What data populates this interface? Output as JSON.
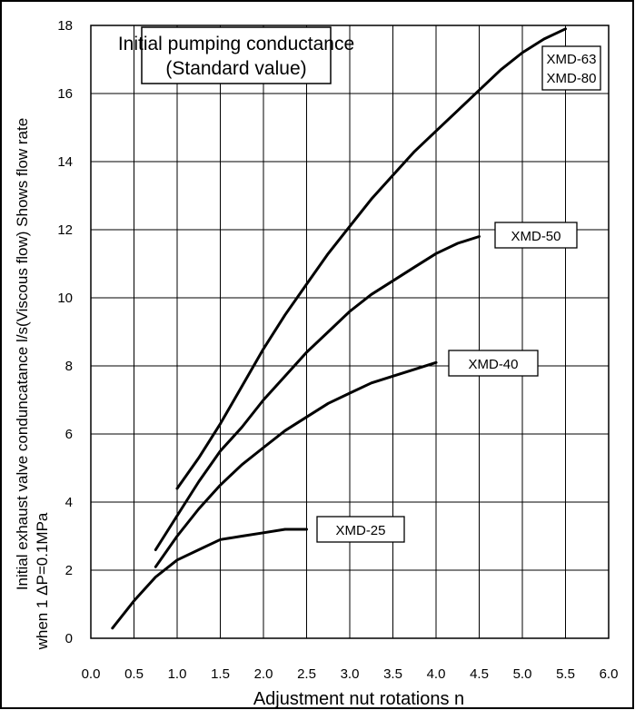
{
  "chart_data": {
    "type": "line",
    "title": "Initial pumping conductance",
    "subtitle": "(Standard value)",
    "xlabel": "Adjustment nut rotations n",
    "ylabel_lines": [
      "Initial  exhaust  valve    conduncatance  l/s(Viscous  flow)  Shows  flow  rate",
      "when 1  ΔP=0.1MPa"
    ],
    "xlim": [
      0.0,
      6.0
    ],
    "ylim": [
      0,
      18
    ],
    "x_ticks": [
      {
        "value": 0.0,
        "label": "0.0"
      },
      {
        "value": 0.5,
        "label": "0.5"
      },
      {
        "value": 1.0,
        "label": "1.0"
      },
      {
        "value": 1.5,
        "label": "1.5"
      },
      {
        "value": 2.0,
        "label": "2.0"
      },
      {
        "value": 2.5,
        "label": "2.5"
      },
      {
        "value": 3.0,
        "label": "3.0"
      },
      {
        "value": 3.5,
        "label": "3.5"
      },
      {
        "value": 4.0,
        "label": "4.0"
      },
      {
        "value": 4.5,
        "label": "4.5"
      },
      {
        "value": 5.0,
        "label": "5.0"
      },
      {
        "value": 5.5,
        "label": "5.5"
      },
      {
        "value": 6.0,
        "label": "6.0"
      }
    ],
    "y_ticks": [
      {
        "value": 0,
        "label": "0"
      },
      {
        "value": 2,
        "label": "2"
      },
      {
        "value": 4,
        "label": "4"
      },
      {
        "value": 6,
        "label": "6"
      },
      {
        "value": 8,
        "label": "8"
      },
      {
        "value": 10,
        "label": "10"
      },
      {
        "value": 12,
        "label": "12"
      },
      {
        "value": 14,
        "label": "14"
      },
      {
        "value": 16,
        "label": "16"
      },
      {
        "value": 18,
        "label": "18"
      }
    ],
    "grid": true,
    "series": [
      {
        "name": "XMD-63\nXMD-80",
        "label_lines": [
          "XMD-63",
          "XMD-80"
        ],
        "points": [
          [
            1.0,
            4.4
          ],
          [
            1.25,
            5.3
          ],
          [
            1.5,
            6.3
          ],
          [
            1.75,
            7.4
          ],
          [
            2.0,
            8.5
          ],
          [
            2.25,
            9.5
          ],
          [
            2.5,
            10.4
          ],
          [
            2.75,
            11.3
          ],
          [
            3.0,
            12.1
          ],
          [
            3.25,
            12.9
          ],
          [
            3.5,
            13.6
          ],
          [
            3.75,
            14.3
          ],
          [
            4.0,
            14.9
          ],
          [
            4.25,
            15.5
          ],
          [
            4.5,
            16.1
          ],
          [
            4.75,
            16.7
          ],
          [
            5.0,
            17.2
          ],
          [
            5.25,
            17.6
          ],
          [
            5.5,
            17.9
          ]
        ]
      },
      {
        "name": "XMD-50",
        "label_lines": [
          "XMD-50"
        ],
        "points": [
          [
            0.75,
            2.6
          ],
          [
            1.0,
            3.6
          ],
          [
            1.25,
            4.6
          ],
          [
            1.5,
            5.5
          ],
          [
            1.75,
            6.2
          ],
          [
            2.0,
            7.0
          ],
          [
            2.25,
            7.7
          ],
          [
            2.5,
            8.4
          ],
          [
            2.75,
            9.0
          ],
          [
            3.0,
            9.6
          ],
          [
            3.25,
            10.1
          ],
          [
            3.5,
            10.5
          ],
          [
            3.75,
            10.9
          ],
          [
            4.0,
            11.3
          ],
          [
            4.25,
            11.6
          ],
          [
            4.5,
            11.8
          ]
        ]
      },
      {
        "name": "XMD-40",
        "label_lines": [
          "XMD-40"
        ],
        "points": [
          [
            0.75,
            2.1
          ],
          [
            1.0,
            3.0
          ],
          [
            1.25,
            3.8
          ],
          [
            1.5,
            4.5
          ],
          [
            1.75,
            5.1
          ],
          [
            2.0,
            5.6
          ],
          [
            2.25,
            6.1
          ],
          [
            2.5,
            6.5
          ],
          [
            2.75,
            6.9
          ],
          [
            3.0,
            7.2
          ],
          [
            3.25,
            7.5
          ],
          [
            3.5,
            7.7
          ],
          [
            3.75,
            7.9
          ],
          [
            4.0,
            8.1
          ]
        ]
      },
      {
        "name": "XMD-25",
        "label_lines": [
          "XMD-25"
        ],
        "points": [
          [
            0.25,
            0.3
          ],
          [
            0.5,
            1.1
          ],
          [
            0.75,
            1.8
          ],
          [
            1.0,
            2.3
          ],
          [
            1.25,
            2.6
          ],
          [
            1.5,
            2.9
          ],
          [
            1.75,
            3.0
          ],
          [
            2.0,
            3.1
          ],
          [
            2.25,
            3.2
          ],
          [
            2.5,
            3.2
          ]
        ]
      }
    ]
  }
}
